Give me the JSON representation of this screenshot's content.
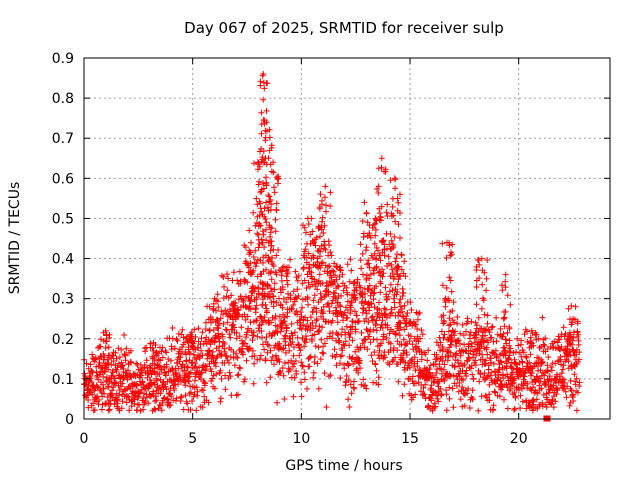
{
  "chart_data": {
    "type": "scatter",
    "title": "Day 067 of 2025, SRMTID for receiver sulp",
    "xlabel": "GPS time / hours",
    "ylabel": "SRMTID / TECUs",
    "xlim": [
      0,
      24.2
    ],
    "ylim": [
      0,
      0.9
    ],
    "xticks": [
      0,
      5,
      10,
      15,
      20
    ],
    "yticks": [
      0,
      0.1,
      0.2,
      0.3,
      0.4,
      0.5,
      0.6,
      0.7,
      0.8,
      0.9
    ],
    "xtick_labels": [
      "0",
      "5",
      "10",
      "15",
      "20"
    ],
    "ytick_labels": [
      "0",
      "0.1",
      "0.2",
      "0.3",
      "0.4",
      "0.5",
      "0.6",
      "0.7",
      "0.8",
      "0.9"
    ],
    "grid": true,
    "marker": "plus",
    "color": "#ff0000",
    "series": [
      {
        "name": "SRMTID",
        "trend_hours": [
          0,
          1,
          2,
          3,
          4,
          5,
          5.5,
          6,
          6.5,
          7,
          7.5,
          8,
          8.5,
          9,
          9.5,
          10,
          10.5,
          11,
          11.5,
          12,
          12.5,
          13,
          13.5,
          14,
          14.5,
          15,
          15.5,
          16,
          16.5,
          17,
          17.5,
          18,
          18.5,
          19,
          19.5,
          20,
          20.5,
          21,
          21.5,
          22,
          22.8
        ],
        "trend_values": [
          0.08,
          0.1,
          0.09,
          0.09,
          0.11,
          0.13,
          0.13,
          0.18,
          0.21,
          0.22,
          0.22,
          0.28,
          0.24,
          0.2,
          0.23,
          0.24,
          0.26,
          0.29,
          0.27,
          0.24,
          0.19,
          0.27,
          0.25,
          0.3,
          0.22,
          0.17,
          0.14,
          0.07,
          0.15,
          0.17,
          0.14,
          0.16,
          0.15,
          0.13,
          0.12,
          0.11,
          0.11,
          0.12,
          0.11,
          0.14,
          0.16
        ],
        "peaks": [
          {
            "hour": 1.0,
            "value": 0.22
          },
          {
            "hour": 3.2,
            "value": 0.19
          },
          {
            "hour": 4.9,
            "value": 0.21
          },
          {
            "hour": 6.0,
            "value": 0.3
          },
          {
            "hour": 6.9,
            "value": 0.29
          },
          {
            "hour": 7.6,
            "value": 0.47
          },
          {
            "hour": 8.0,
            "value": 0.64
          },
          {
            "hour": 8.25,
            "value": 0.86
          },
          {
            "hour": 8.4,
            "value": 0.74
          },
          {
            "hour": 8.7,
            "value": 0.64
          },
          {
            "hour": 9.2,
            "value": 0.38
          },
          {
            "hour": 10.3,
            "value": 0.5
          },
          {
            "hour": 10.8,
            "value": 0.48
          },
          {
            "hour": 11.1,
            "value": 0.58
          },
          {
            "hour": 11.6,
            "value": 0.38
          },
          {
            "hour": 12.3,
            "value": 0.37
          },
          {
            "hour": 12.9,
            "value": 0.54
          },
          {
            "hour": 13.4,
            "value": 0.5
          },
          {
            "hour": 13.7,
            "value": 0.65
          },
          {
            "hour": 14.3,
            "value": 0.6
          },
          {
            "hour": 14.6,
            "value": 0.41
          },
          {
            "hour": 16.7,
            "value": 0.44
          },
          {
            "hour": 18.3,
            "value": 0.4
          },
          {
            "hour": 19.4,
            "value": 0.36
          },
          {
            "hour": 20.6,
            "value": 0.22
          },
          {
            "hour": 22.5,
            "value": 0.25
          }
        ],
        "outliers": [
          {
            "hour": 21.3,
            "value": 0.0
          }
        ]
      }
    ]
  }
}
